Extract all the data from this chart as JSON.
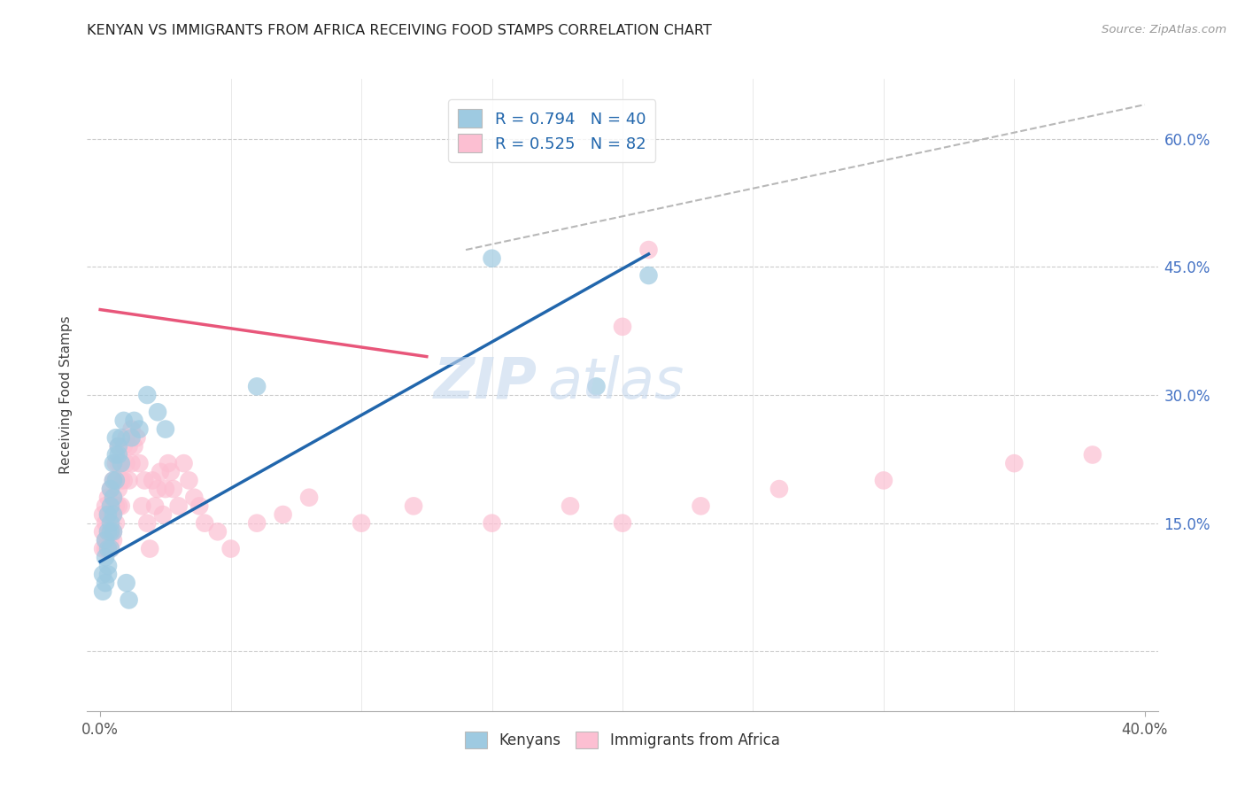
{
  "title": "KENYAN VS IMMIGRANTS FROM AFRICA RECEIVING FOOD STAMPS CORRELATION CHART",
  "source": "Source: ZipAtlas.com",
  "ylabel": "Receiving Food Stamps",
  "xlim": [
    0.0,
    0.4
  ],
  "ylim": [
    -0.07,
    0.67
  ],
  "y_ticks": [
    0.0,
    0.15,
    0.3,
    0.45,
    0.6
  ],
  "y_tick_labels": [
    "",
    "15.0%",
    "30.0%",
    "45.0%",
    "60.0%"
  ],
  "legend1_R": "0.794",
  "legend1_N": "40",
  "legend2_R": "0.525",
  "legend2_N": "82",
  "color_blue": "#9ecae1",
  "color_pink": "#fcbfd2",
  "color_trendline_blue": "#2166ac",
  "color_trendline_pink": "#e8567a",
  "color_dashed": "#b8b8b8",
  "watermark_zip": "ZIP",
  "watermark_atlas": "atlas",
  "kenyan_x": [
    0.001,
    0.001,
    0.002,
    0.002,
    0.002,
    0.003,
    0.003,
    0.003,
    0.003,
    0.003,
    0.004,
    0.004,
    0.004,
    0.004,
    0.004,
    0.005,
    0.005,
    0.005,
    0.005,
    0.005,
    0.006,
    0.006,
    0.006,
    0.007,
    0.007,
    0.008,
    0.008,
    0.009,
    0.01,
    0.011,
    0.012,
    0.013,
    0.015,
    0.018,
    0.022,
    0.025,
    0.06,
    0.15,
    0.19,
    0.21
  ],
  "kenyan_y": [
    0.07,
    0.09,
    0.11,
    0.13,
    0.08,
    0.1,
    0.14,
    0.12,
    0.16,
    0.09,
    0.14,
    0.17,
    0.19,
    0.15,
    0.12,
    0.16,
    0.18,
    0.22,
    0.14,
    0.2,
    0.23,
    0.25,
    0.2,
    0.23,
    0.24,
    0.25,
    0.22,
    0.27,
    0.08,
    0.06,
    0.25,
    0.27,
    0.26,
    0.3,
    0.28,
    0.26,
    0.31,
    0.46,
    0.31,
    0.44
  ],
  "africa_x": [
    0.001,
    0.001,
    0.001,
    0.002,
    0.002,
    0.002,
    0.002,
    0.003,
    0.003,
    0.003,
    0.003,
    0.003,
    0.003,
    0.004,
    0.004,
    0.004,
    0.004,
    0.004,
    0.004,
    0.005,
    0.005,
    0.005,
    0.005,
    0.005,
    0.006,
    0.006,
    0.006,
    0.006,
    0.007,
    0.007,
    0.007,
    0.007,
    0.008,
    0.008,
    0.008,
    0.009,
    0.009,
    0.01,
    0.01,
    0.011,
    0.011,
    0.012,
    0.012,
    0.013,
    0.014,
    0.015,
    0.016,
    0.017,
    0.018,
    0.019,
    0.02,
    0.021,
    0.022,
    0.023,
    0.024,
    0.025,
    0.026,
    0.027,
    0.028,
    0.03,
    0.032,
    0.034,
    0.036,
    0.038,
    0.04,
    0.045,
    0.05,
    0.06,
    0.07,
    0.08,
    0.1,
    0.12,
    0.15,
    0.18,
    0.2,
    0.23,
    0.26,
    0.3,
    0.35,
    0.38,
    0.2,
    0.21
  ],
  "africa_y": [
    0.12,
    0.14,
    0.16,
    0.13,
    0.15,
    0.17,
    0.12,
    0.14,
    0.16,
    0.12,
    0.14,
    0.16,
    0.18,
    0.13,
    0.15,
    0.17,
    0.12,
    0.14,
    0.19,
    0.14,
    0.16,
    0.18,
    0.13,
    0.2,
    0.15,
    0.17,
    0.2,
    0.22,
    0.17,
    0.19,
    0.22,
    0.24,
    0.17,
    0.2,
    0.22,
    0.2,
    0.24,
    0.22,
    0.25,
    0.24,
    0.2,
    0.26,
    0.22,
    0.24,
    0.25,
    0.22,
    0.17,
    0.2,
    0.15,
    0.12,
    0.2,
    0.17,
    0.19,
    0.21,
    0.16,
    0.19,
    0.22,
    0.21,
    0.19,
    0.17,
    0.22,
    0.2,
    0.18,
    0.17,
    0.15,
    0.14,
    0.12,
    0.15,
    0.16,
    0.18,
    0.15,
    0.17,
    0.15,
    0.17,
    0.15,
    0.17,
    0.19,
    0.2,
    0.22,
    0.23,
    0.38,
    0.47
  ],
  "blue_trendline": [
    [
      0.0,
      0.21
    ],
    [
      0.105,
      0.465
    ]
  ],
  "pink_trendline": [
    [
      0.0,
      0.125
    ],
    [
      0.4,
      0.345
    ]
  ],
  "dashed_line": [
    [
      0.14,
      0.4
    ],
    [
      0.47,
      0.64
    ]
  ]
}
